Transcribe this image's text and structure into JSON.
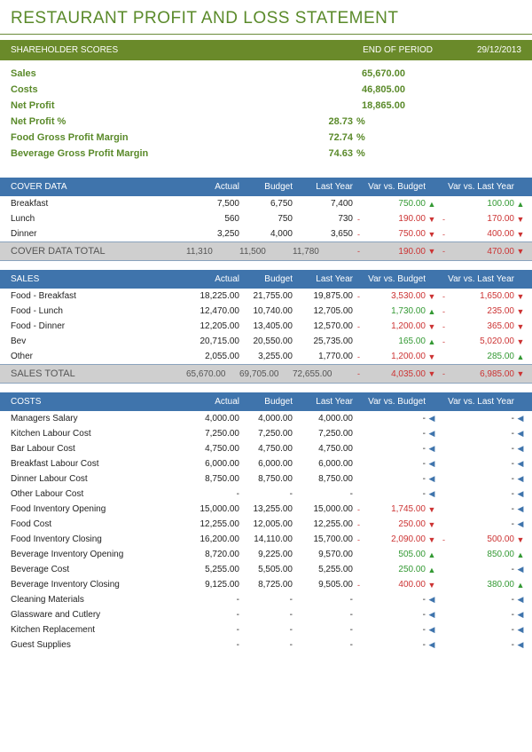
{
  "title": "RESTAURANT PROFIT AND LOSS STATEMENT",
  "colors": {
    "olive": "#6a8a2a",
    "olive_text": "#5a8a2a",
    "blue": "#3f74ac",
    "grey_total": "#cfcfcf",
    "neg": "#cc3333",
    "pos": "#339933"
  },
  "shareholder": {
    "title": "SHAREHOLDER SCORES",
    "end_of_period": "END OF PERIOD",
    "date": "29/12/2013",
    "rows": [
      {
        "label": "Sales",
        "value": "65,670.00"
      },
      {
        "label": "Costs",
        "value": "46,805.00"
      },
      {
        "label": "Net Profit",
        "value": "18,865.00"
      }
    ],
    "pct_rows": [
      {
        "label": "Net Profit %",
        "value": "28.73",
        "unit": "%"
      },
      {
        "label": "Food Gross Profit Margin",
        "value": "72.74",
        "unit": "%"
      },
      {
        "label": "Beverage Gross Profit Margin",
        "value": "74.63",
        "unit": "%"
      }
    ]
  },
  "columns": {
    "actual": "Actual",
    "budget": "Budget",
    "lastyear": "Last Year",
    "varb": "Var vs. Budget",
    "vary": "Var vs. Last Year"
  },
  "cover": {
    "title": "COVER DATA",
    "rows": [
      {
        "label": "Breakfast",
        "actual": "7,500",
        "budget": "6,750",
        "lastyear": "7,400",
        "varb_sign": "",
        "varb": "750.00",
        "varb_cls": "pos",
        "varb_icon": "▲",
        "varb_icon_cls": "pos",
        "vary_sign": "",
        "vary": "100.00",
        "vary_cls": "pos",
        "vary_icon": "▲",
        "vary_icon_cls": "pos"
      },
      {
        "label": "Lunch",
        "actual": "560",
        "budget": "750",
        "lastyear": "730",
        "varb_sign": "-",
        "varb": "190.00",
        "varb_cls": "neg",
        "varb_icon": "▼",
        "varb_icon_cls": "neg",
        "vary_sign": "-",
        "vary": "170.00",
        "vary_cls": "neg",
        "vary_icon": "▼",
        "vary_icon_cls": "neg"
      },
      {
        "label": "Dinner",
        "actual": "3,250",
        "budget": "4,000",
        "lastyear": "3,650",
        "varb_sign": "-",
        "varb": "750.00",
        "varb_cls": "neg",
        "varb_icon": "▼",
        "varb_icon_cls": "neg",
        "vary_sign": "-",
        "vary": "400.00",
        "vary_cls": "neg",
        "vary_icon": "▼",
        "vary_icon_cls": "neg"
      }
    ],
    "total": {
      "label": "COVER DATA TOTAL",
      "actual": "11,310",
      "budget": "11,500",
      "lastyear": "11,780",
      "varb_sign": "-",
      "varb": "190.00",
      "varb_cls": "neg",
      "varb_icon": "▼",
      "varb_icon_cls": "neg",
      "vary_sign": "-",
      "vary": "470.00",
      "vary_cls": "neg",
      "vary_icon": "▼",
      "vary_icon_cls": "neg"
    }
  },
  "sales": {
    "title": "SALES",
    "rows": [
      {
        "label": "Food - Breakfast",
        "actual": "18,225.00",
        "budget": "21,755.00",
        "lastyear": "19,875.00",
        "varb_sign": "-",
        "varb": "3,530.00",
        "varb_cls": "neg",
        "varb_icon": "▼",
        "varb_icon_cls": "neg",
        "vary_sign": "-",
        "vary": "1,650.00",
        "vary_cls": "neg",
        "vary_icon": "▼",
        "vary_icon_cls": "neg"
      },
      {
        "label": "Food - Lunch",
        "actual": "12,470.00",
        "budget": "10,740.00",
        "lastyear": "12,705.00",
        "varb_sign": "",
        "varb": "1,730.00",
        "varb_cls": "pos",
        "varb_icon": "▲",
        "varb_icon_cls": "pos",
        "vary_sign": "-",
        "vary": "235.00",
        "vary_cls": "neg",
        "vary_icon": "▼",
        "vary_icon_cls": "neg"
      },
      {
        "label": "Food - Dinner",
        "actual": "12,205.00",
        "budget": "13,405.00",
        "lastyear": "12,570.00",
        "varb_sign": "-",
        "varb": "1,200.00",
        "varb_cls": "neg",
        "varb_icon": "▼",
        "varb_icon_cls": "neg",
        "vary_sign": "-",
        "vary": "365.00",
        "vary_cls": "neg",
        "vary_icon": "▼",
        "vary_icon_cls": "neg"
      },
      {
        "label": "Bev",
        "actual": "20,715.00",
        "budget": "20,550.00",
        "lastyear": "25,735.00",
        "varb_sign": "",
        "varb": "165.00",
        "varb_cls": "pos",
        "varb_icon": "▲",
        "varb_icon_cls": "pos",
        "vary_sign": "-",
        "vary": "5,020.00",
        "vary_cls": "neg",
        "vary_icon": "▼",
        "vary_icon_cls": "neg"
      },
      {
        "label": "Other",
        "actual": "2,055.00",
        "budget": "3,255.00",
        "lastyear": "1,770.00",
        "varb_sign": "-",
        "varb": "1,200.00",
        "varb_cls": "neg",
        "varb_icon": "▼",
        "varb_icon_cls": "neg",
        "vary_sign": "",
        "vary": "285.00",
        "vary_cls": "pos",
        "vary_icon": "▲",
        "vary_icon_cls": "pos"
      }
    ],
    "total": {
      "label": "SALES TOTAL",
      "actual": "65,670.00",
      "budget": "69,705.00",
      "lastyear": "72,655.00",
      "varb_sign": "-",
      "varb": "4,035.00",
      "varb_cls": "neg",
      "varb_icon": "▼",
      "varb_icon_cls": "neg",
      "vary_sign": "-",
      "vary": "6,985.00",
      "vary_cls": "neg",
      "vary_icon": "▼",
      "vary_icon_cls": "neg"
    }
  },
  "costs": {
    "title": "COSTS",
    "rows": [
      {
        "label": "Managers Salary",
        "actual": "4,000.00",
        "budget": "4,000.00",
        "lastyear": "4,000.00",
        "varb_sign": "",
        "varb": "-",
        "varb_cls": "",
        "varb_icon": "◀",
        "varb_icon_cls": "neu",
        "vary_sign": "",
        "vary": "-",
        "vary_cls": "",
        "vary_icon": "◀",
        "vary_icon_cls": "neu"
      },
      {
        "label": "Kitchen Labour Cost",
        "actual": "7,250.00",
        "budget": "7,250.00",
        "lastyear": "7,250.00",
        "varb_sign": "",
        "varb": "-",
        "varb_cls": "",
        "varb_icon": "◀",
        "varb_icon_cls": "neu",
        "vary_sign": "",
        "vary": "-",
        "vary_cls": "",
        "vary_icon": "◀",
        "vary_icon_cls": "neu"
      },
      {
        "label": "Bar Labour Cost",
        "actual": "4,750.00",
        "budget": "4,750.00",
        "lastyear": "4,750.00",
        "varb_sign": "",
        "varb": "-",
        "varb_cls": "",
        "varb_icon": "◀",
        "varb_icon_cls": "neu",
        "vary_sign": "",
        "vary": "-",
        "vary_cls": "",
        "vary_icon": "◀",
        "vary_icon_cls": "neu"
      },
      {
        "label": "Breakfast Labour Cost",
        "actual": "6,000.00",
        "budget": "6,000.00",
        "lastyear": "6,000.00",
        "varb_sign": "",
        "varb": "-",
        "varb_cls": "",
        "varb_icon": "◀",
        "varb_icon_cls": "neu",
        "vary_sign": "",
        "vary": "-",
        "vary_cls": "",
        "vary_icon": "◀",
        "vary_icon_cls": "neu"
      },
      {
        "label": "Dinner Labour Cost",
        "actual": "8,750.00",
        "budget": "8,750.00",
        "lastyear": "8,750.00",
        "varb_sign": "",
        "varb": "-",
        "varb_cls": "",
        "varb_icon": "◀",
        "varb_icon_cls": "neu",
        "vary_sign": "",
        "vary": "-",
        "vary_cls": "",
        "vary_icon": "◀",
        "vary_icon_cls": "neu"
      },
      {
        "label": "Other Labour Cost",
        "actual": "-",
        "budget": "-",
        "lastyear": "-",
        "varb_sign": "",
        "varb": "-",
        "varb_cls": "",
        "varb_icon": "◀",
        "varb_icon_cls": "neu",
        "vary_sign": "",
        "vary": "-",
        "vary_cls": "",
        "vary_icon": "◀",
        "vary_icon_cls": "neu"
      },
      {
        "label": "Food Inventory Opening",
        "actual": "15,000.00",
        "budget": "13,255.00",
        "lastyear": "15,000.00",
        "varb_sign": "-",
        "varb": "1,745.00",
        "varb_cls": "neg",
        "varb_icon": "▼",
        "varb_icon_cls": "neg",
        "vary_sign": "",
        "vary": "-",
        "vary_cls": "",
        "vary_icon": "◀",
        "vary_icon_cls": "neu"
      },
      {
        "label": "Food Cost",
        "actual": "12,255.00",
        "budget": "12,005.00",
        "lastyear": "12,255.00",
        "varb_sign": "-",
        "varb": "250.00",
        "varb_cls": "neg",
        "varb_icon": "▼",
        "varb_icon_cls": "neg",
        "vary_sign": "",
        "vary": "-",
        "vary_cls": "",
        "vary_icon": "◀",
        "vary_icon_cls": "neu"
      },
      {
        "label": "Food Inventory Closing",
        "actual": "16,200.00",
        "budget": "14,110.00",
        "lastyear": "15,700.00",
        "varb_sign": "-",
        "varb": "2,090.00",
        "varb_cls": "neg",
        "varb_icon": "▼",
        "varb_icon_cls": "neg",
        "vary_sign": "-",
        "vary": "500.00",
        "vary_cls": "neg",
        "vary_icon": "▼",
        "vary_icon_cls": "neg"
      },
      {
        "label": "Beverage Inventory Opening",
        "actual": "8,720.00",
        "budget": "9,225.00",
        "lastyear": "9,570.00",
        "varb_sign": "",
        "varb": "505.00",
        "varb_cls": "pos",
        "varb_icon": "▲",
        "varb_icon_cls": "pos",
        "vary_sign": "",
        "vary": "850.00",
        "vary_cls": "pos",
        "vary_icon": "▲",
        "vary_icon_cls": "pos"
      },
      {
        "label": "Beverage Cost",
        "actual": "5,255.00",
        "budget": "5,505.00",
        "lastyear": "5,255.00",
        "varb_sign": "",
        "varb": "250.00",
        "varb_cls": "pos",
        "varb_icon": "▲",
        "varb_icon_cls": "pos",
        "vary_sign": "",
        "vary": "-",
        "vary_cls": "",
        "vary_icon": "◀",
        "vary_icon_cls": "neu"
      },
      {
        "label": "Beverage Inventory Closing",
        "actual": "9,125.00",
        "budget": "8,725.00",
        "lastyear": "9,505.00",
        "varb_sign": "-",
        "varb": "400.00",
        "varb_cls": "neg",
        "varb_icon": "▼",
        "varb_icon_cls": "neg",
        "vary_sign": "",
        "vary": "380.00",
        "vary_cls": "pos",
        "vary_icon": "▲",
        "vary_icon_cls": "pos"
      },
      {
        "label": "Cleaning Materials",
        "actual": "-",
        "budget": "-",
        "lastyear": "-",
        "varb_sign": "",
        "varb": "-",
        "varb_cls": "",
        "varb_icon": "◀",
        "varb_icon_cls": "neu",
        "vary_sign": "",
        "vary": "-",
        "vary_cls": "",
        "vary_icon": "◀",
        "vary_icon_cls": "neu"
      },
      {
        "label": "Glassware and Cutlery",
        "actual": "-",
        "budget": "-",
        "lastyear": "-",
        "varb_sign": "",
        "varb": "-",
        "varb_cls": "",
        "varb_icon": "◀",
        "varb_icon_cls": "neu",
        "vary_sign": "",
        "vary": "-",
        "vary_cls": "",
        "vary_icon": "◀",
        "vary_icon_cls": "neu"
      },
      {
        "label": "Kitchen Replacement",
        "actual": "-",
        "budget": "-",
        "lastyear": "-",
        "varb_sign": "",
        "varb": "-",
        "varb_cls": "",
        "varb_icon": "◀",
        "varb_icon_cls": "neu",
        "vary_sign": "",
        "vary": "-",
        "vary_cls": "",
        "vary_icon": "◀",
        "vary_icon_cls": "neu"
      },
      {
        "label": "Guest Supplies",
        "actual": "-",
        "budget": "-",
        "lastyear": "-",
        "varb_sign": "",
        "varb": "-",
        "varb_cls": "",
        "varb_icon": "◀",
        "varb_icon_cls": "neu",
        "vary_sign": "",
        "vary": "-",
        "vary_cls": "",
        "vary_icon": "◀",
        "vary_icon_cls": "neu"
      }
    ]
  }
}
